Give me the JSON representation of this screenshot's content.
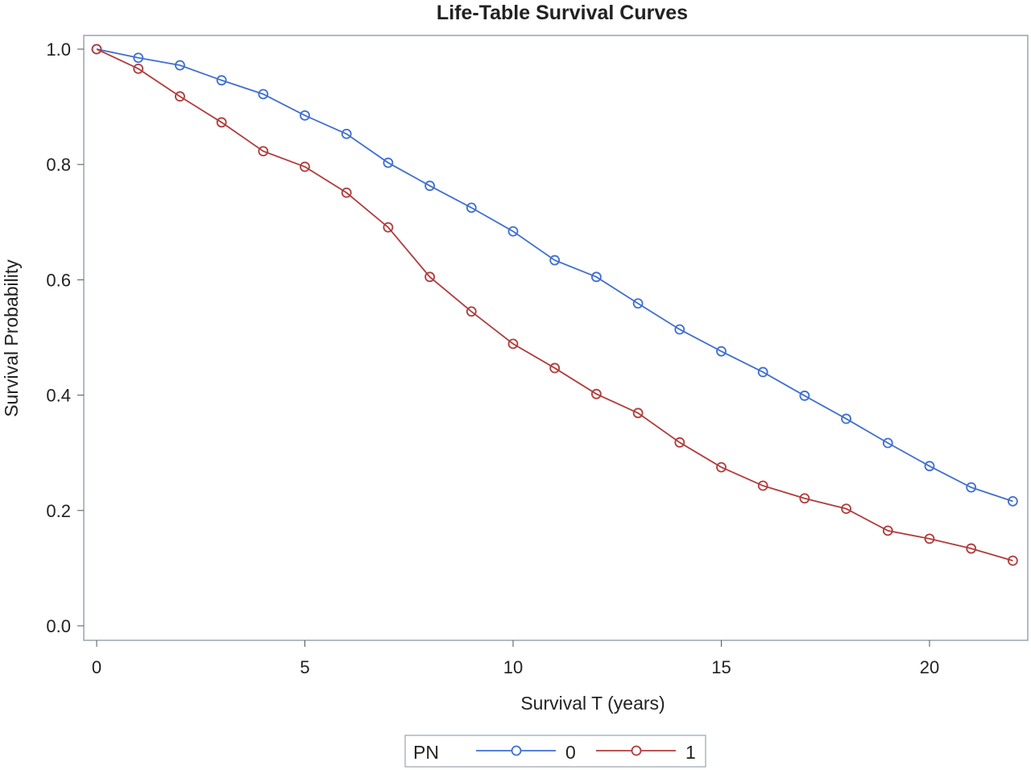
{
  "chart_data": {
    "type": "line",
    "title": "Life-Table Survival Curves",
    "xlabel": "Survival T (years)",
    "ylabel": "Survival Probability",
    "xlim": [
      0,
      22
    ],
    "ylim": [
      0,
      1
    ],
    "xticks": [
      0,
      5,
      10,
      15,
      20
    ],
    "xtick_labels": [
      "0",
      "5",
      "10",
      "15",
      "20"
    ],
    "yticks": [
      0,
      0.2,
      0.4,
      0.6,
      0.8,
      1.0
    ],
    "ytick_labels": [
      "0.0",
      "0.2",
      "0.4",
      "0.6",
      "0.8",
      "1.0"
    ],
    "grid": false,
    "legend": {
      "title": "PN",
      "placement": "bottom"
    },
    "x": [
      0,
      1,
      2,
      3,
      4,
      5,
      6,
      7,
      8,
      9,
      10,
      11,
      12,
      13,
      14,
      15,
      16,
      17,
      18,
      19,
      20,
      21,
      22
    ],
    "series": [
      {
        "name": "0",
        "color": "#3f6fd0",
        "values": [
          1.0,
          0.985,
          0.972,
          0.946,
          0.922,
          0.885,
          0.853,
          0.803,
          0.763,
          0.725,
          0.684,
          0.634,
          0.605,
          0.559,
          0.514,
          0.476,
          0.44,
          0.399,
          0.359,
          0.317,
          0.277,
          0.24,
          0.216
        ]
      },
      {
        "name": "1",
        "color": "#b13c3c",
        "values": [
          1.0,
          0.966,
          0.918,
          0.873,
          0.823,
          0.796,
          0.751,
          0.691,
          0.605,
          0.545,
          0.489,
          0.447,
          0.402,
          0.369,
          0.318,
          0.275,
          0.243,
          0.221,
          0.203,
          0.165,
          0.151,
          0.134,
          0.113
        ]
      }
    ]
  }
}
